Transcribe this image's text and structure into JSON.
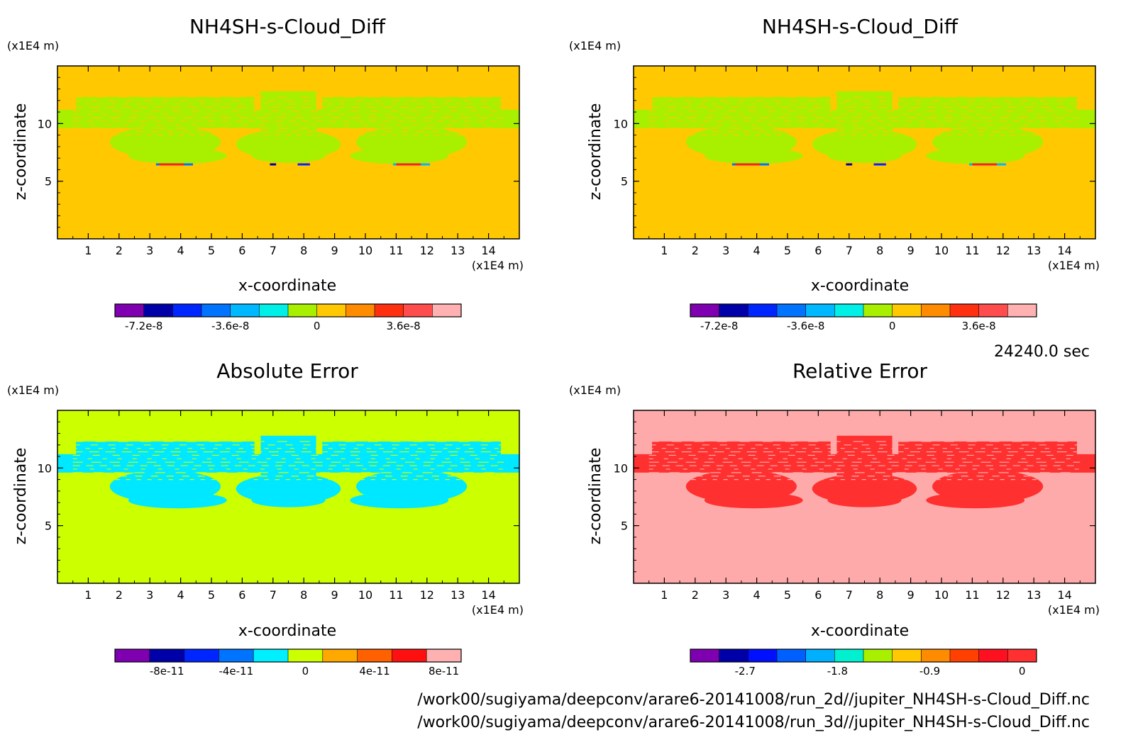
{
  "time_label": "24240.0 sec",
  "files": [
    "/work00/sugiyama/deepconv/arare6-20141008/run_2d//jupiter_NH4SH-s-Cloud_Diff.nc",
    "/work00/sugiyama/deepconv/arare6-20141008/run_3d//jupiter_NH4SH-s-Cloud_Diff.nc"
  ],
  "colors": {
    "palette": [
      "#7f00b0",
      "#0000a8",
      "#0026ff",
      "#0073ff",
      "#00b8ff",
      "#00f0e8",
      "#a8f000",
      "#ffc800",
      "#ff8c00",
      "#ff5000",
      "#ff2020",
      "#ff4d4d",
      "#ffb0b0"
    ]
  },
  "chart_data": [
    {
      "type": "heatmap",
      "title": "NH4SH-s-Cloud_Diff",
      "xlabel": "x-coordinate",
      "ylabel": "z-coordinate",
      "xunit": "(x1E4 m)",
      "yunit": "(x1E4 m)",
      "xlim": [
        0,
        15
      ],
      "ylim": [
        0,
        15
      ],
      "xticks": [
        "1",
        "2",
        "3",
        "4",
        "5",
        "6",
        "7",
        "8",
        "9",
        "10",
        "11",
        "12",
        "13",
        "14"
      ],
      "yticks": [
        "5",
        "10"
      ],
      "background_color": "#ffc800",
      "pattern_color": "#a8f000",
      "colorbar": {
        "colors": [
          "#7f00b0",
          "#0000a8",
          "#0026ff",
          "#0073ff",
          "#00b8ff",
          "#00f0e8",
          "#a8f000",
          "#ffc800",
          "#ff8c00",
          "#ff3010",
          "#ff4d4d",
          "#ffb0b0"
        ],
        "labels": [
          "-7.2e-8",
          "-3.6e-8",
          "0",
          "3.6e-8"
        ],
        "label_positions": [
          0.5,
          3.5,
          6.5,
          9.5
        ]
      }
    },
    {
      "type": "heatmap",
      "title": "NH4SH-s-Cloud_Diff",
      "xlabel": "x-coordinate",
      "ylabel": "z-coordinate",
      "xunit": "(x1E4 m)",
      "yunit": "(x1E4 m)",
      "xlim": [
        0,
        15
      ],
      "ylim": [
        0,
        15
      ],
      "xticks": [
        "1",
        "2",
        "3",
        "4",
        "5",
        "6",
        "7",
        "8",
        "9",
        "10",
        "11",
        "12",
        "13",
        "14"
      ],
      "yticks": [
        "5",
        "10"
      ],
      "background_color": "#ffc800",
      "pattern_color": "#a8f000",
      "colorbar": {
        "colors": [
          "#7f00b0",
          "#0000a8",
          "#0026ff",
          "#0073ff",
          "#00b8ff",
          "#00f0e8",
          "#a8f000",
          "#ffc800",
          "#ff8c00",
          "#ff3010",
          "#ff4d4d",
          "#ffb0b0"
        ],
        "labels": [
          "-7.2e-8",
          "-3.6e-8",
          "0",
          "3.6e-8"
        ],
        "label_positions": [
          0.5,
          3.5,
          6.5,
          9.5
        ]
      }
    },
    {
      "type": "heatmap",
      "title": "Absolute Error",
      "xlabel": "x-coordinate",
      "ylabel": "z-coordinate",
      "xunit": "(x1E4 m)",
      "yunit": "(x1E4 m)",
      "xlim": [
        0,
        15
      ],
      "ylim": [
        0,
        15
      ],
      "xticks": [
        "1",
        "2",
        "3",
        "4",
        "5",
        "6",
        "7",
        "8",
        "9",
        "10",
        "11",
        "12",
        "13",
        "14"
      ],
      "yticks": [
        "5",
        "10"
      ],
      "background_color": "#ccff00",
      "pattern_color": "#00e8ff",
      "colorbar": {
        "colors": [
          "#7f00b0",
          "#0000a8",
          "#0026ff",
          "#0073ff",
          "#00f0ff",
          "#ccff00",
          "#ffa800",
          "#ff6000",
          "#ff1010",
          "#ffb0b0"
        ],
        "labels": [
          "-8e-11",
          "-4e-11",
          "0",
          "4e-11",
          "8e-11"
        ],
        "label_positions": [
          1,
          3,
          5,
          7,
          9
        ]
      }
    },
    {
      "type": "heatmap",
      "title": "Relative Error",
      "xlabel": "x-coordinate",
      "ylabel": "z-coordinate",
      "xunit": "(x1E4 m)",
      "yunit": "(x1E4 m)",
      "xlim": [
        0,
        15
      ],
      "ylim": [
        0,
        15
      ],
      "xticks": [
        "1",
        "2",
        "3",
        "4",
        "5",
        "6",
        "7",
        "8",
        "9",
        "10",
        "11",
        "12",
        "13",
        "14"
      ],
      "yticks": [
        "5",
        "10"
      ],
      "background_color": "#ffaaaa",
      "pattern_color": "#ff3030",
      "colorbar": {
        "colors": [
          "#7f00b0",
          "#0000a8",
          "#0010ff",
          "#0060ff",
          "#00b0ff",
          "#00f0d0",
          "#a8f000",
          "#ffc800",
          "#ff8c00",
          "#ff4000",
          "#ff1020",
          "#ff3030"
        ],
        "labels": [
          "-2.7",
          "-1.8",
          "-0.9",
          "0"
        ],
        "label_positions": [
          1.4,
          4.6,
          7.8,
          11
        ]
      }
    }
  ]
}
